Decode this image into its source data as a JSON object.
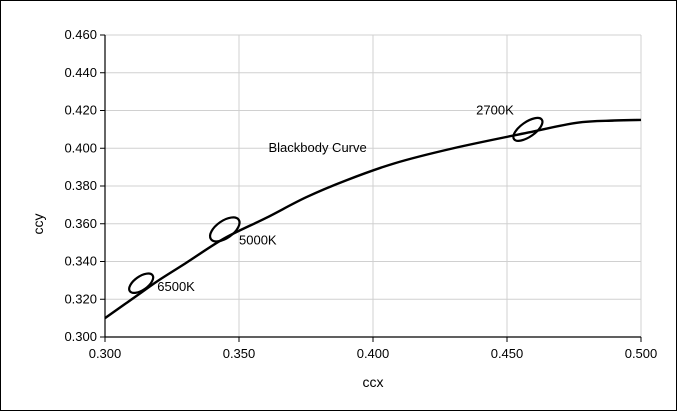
{
  "chart_data": {
    "type": "line",
    "xlabel": "ccx",
    "ylabel": "ccy",
    "xlim": [
      0.3,
      0.5
    ],
    "ylim": [
      0.3,
      0.46
    ],
    "grid": true,
    "legend": "none",
    "x_ticks": [
      "0.300",
      "0.350",
      "0.400",
      "0.450",
      "0.500"
    ],
    "y_ticks": [
      "0.300",
      "0.320",
      "0.340",
      "0.360",
      "0.380",
      "0.400",
      "0.420",
      "0.440",
      "0.460"
    ],
    "series": [
      {
        "x": [
          0.3,
          0.3135,
          0.32,
          0.33,
          0.3447,
          0.36,
          0.375,
          0.39,
          0.408,
          0.43,
          0.4578,
          0.476,
          0.49,
          0.5
        ],
        "y": [
          0.31,
          0.3235,
          0.33,
          0.339,
          0.3524,
          0.363,
          0.374,
          0.383,
          0.392,
          0.4,
          0.4083,
          0.4135,
          0.4147,
          0.415
        ]
      }
    ],
    "annotations": [
      {
        "text": "Blackbody Curve",
        "x": 0.361,
        "y": 0.398
      },
      {
        "text": "2700K",
        "x": 0.4385,
        "y": 0.418
      },
      {
        "text": "5000K",
        "x": 0.35,
        "y": 0.349
      },
      {
        "text": "6500K",
        "x": 0.3195,
        "y": 0.3245
      }
    ],
    "ellipses": [
      {
        "label": "6500K",
        "cx": 0.3135,
        "cy": 0.3285,
        "rx": 0.0045,
        "ry": 0.0055
      },
      {
        "label": "5000K",
        "cx": 0.3447,
        "cy": 0.357,
        "rx": 0.0055,
        "ry": 0.007
      },
      {
        "label": "2700K",
        "cx": 0.4578,
        "cy": 0.41,
        "rx": 0.0055,
        "ry": 0.006
      }
    ]
  }
}
